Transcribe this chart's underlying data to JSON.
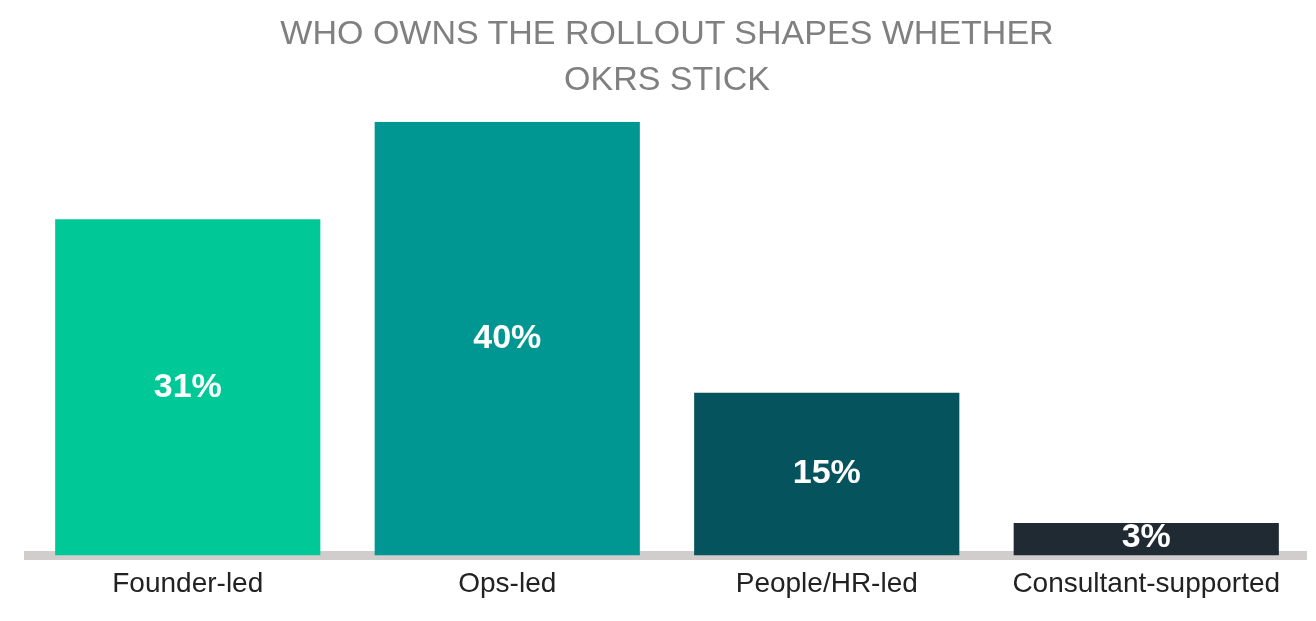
{
  "chart_data": {
    "type": "bar",
    "title": "WHO OWNS THE ROLLOUT SHAPES WHETHER OKRS STICK",
    "categories": [
      "Founder-led",
      "Ops-led",
      "People/HR-led",
      "Consultant-supported"
    ],
    "values": [
      31,
      40,
      15,
      3
    ],
    "colors": [
      "#00c896",
      "#009792",
      "#05535c",
      "#202a33"
    ],
    "value_labels": [
      "31%",
      "40%",
      "15%",
      "3%"
    ],
    "grid": false,
    "legend": false
  }
}
